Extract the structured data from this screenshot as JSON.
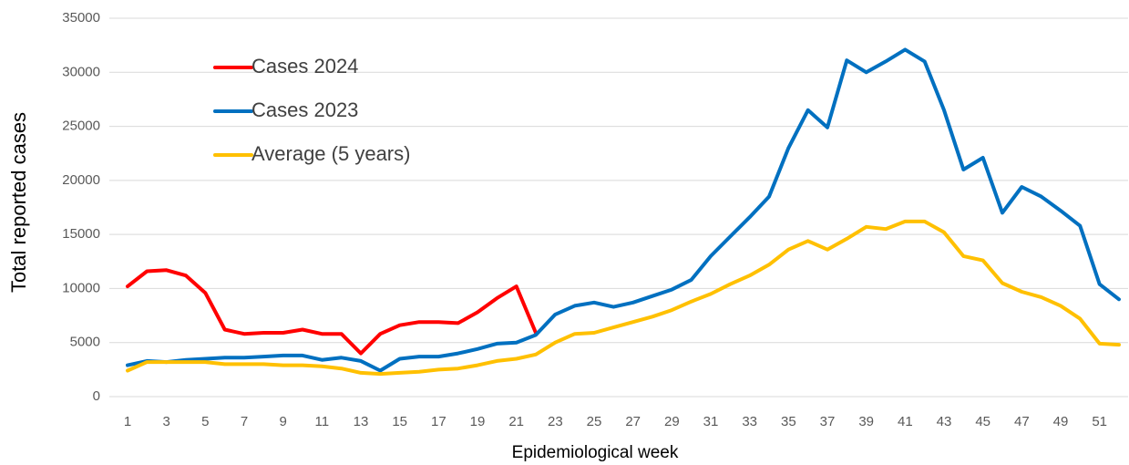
{
  "chart_data": {
    "type": "line",
    "x_label": "Epidemiological week",
    "y_label": "Total reported cases",
    "categories": [
      1,
      null,
      3,
      null,
      5,
      null,
      7,
      null,
      9,
      null,
      11,
      null,
      13,
      null,
      15,
      null,
      17,
      null,
      19,
      null,
      21,
      null,
      23,
      null,
      25,
      null,
      27,
      null,
      29,
      null,
      31,
      null,
      33,
      null,
      35,
      null,
      37,
      null,
      39,
      null,
      41,
      null,
      43,
      null,
      45,
      null,
      47,
      null,
      49,
      null,
      51,
      null
    ],
    "series": [
      {
        "name": "Cases 2024",
        "color": "#ff0000",
        "values": [
          10200,
          11600,
          11700,
          11200,
          9600,
          6200,
          5800,
          5900,
          5900,
          6200,
          5800,
          5800,
          4000,
          5800,
          6600,
          6900,
          6900,
          6800,
          7800,
          9100,
          10200,
          5900,
          null,
          null,
          null,
          null,
          null,
          null,
          null,
          null,
          null,
          null,
          null,
          null,
          null,
          null,
          null,
          null,
          null,
          null,
          null,
          null,
          null,
          null,
          null,
          null,
          null,
          null,
          null,
          null,
          null,
          null
        ]
      },
      {
        "name": "Cases 2023",
        "color": "#0070c0",
        "values": [
          2900,
          3300,
          3200,
          3400,
          3500,
          3600,
          3600,
          3700,
          3800,
          3800,
          3400,
          3600,
          3300,
          2400,
          3500,
          3700,
          3700,
          4000,
          4400,
          4900,
          5000,
          5700,
          7600,
          8400,
          8700,
          8300,
          8700,
          9300,
          9900,
          10800,
          13000,
          14800,
          16600,
          18500,
          23000,
          26500,
          24900,
          31100,
          30000,
          31000,
          32100,
          31000,
          26500,
          21000,
          22100,
          17000,
          19400,
          18500,
          17200,
          15800,
          10400,
          9000
        ]
      },
      {
        "name": "Average (5 years)",
        "color": "#ffc000",
        "values": [
          2400,
          3200,
          3200,
          3200,
          3200,
          3000,
          3000,
          3000,
          2900,
          2900,
          2800,
          2600,
          2200,
          2100,
          2200,
          2300,
          2500,
          2600,
          2900,
          3300,
          3500,
          3900,
          5000,
          5800,
          5900,
          6400,
          6900,
          7400,
          8000,
          8800,
          9500,
          10400,
          11200,
          12200,
          13600,
          14400,
          13600,
          14600,
          15700,
          15500,
          16200,
          16200,
          15200,
          13000,
          12600,
          10500,
          9700,
          9200,
          8400,
          7200,
          4900,
          4800
        ]
      }
    ],
    "ylim": [
      0,
      35000
    ],
    "yticks": [
      0,
      5000,
      10000,
      15000,
      20000,
      25000,
      30000,
      35000
    ],
    "grid": true,
    "legend": "upper left"
  }
}
